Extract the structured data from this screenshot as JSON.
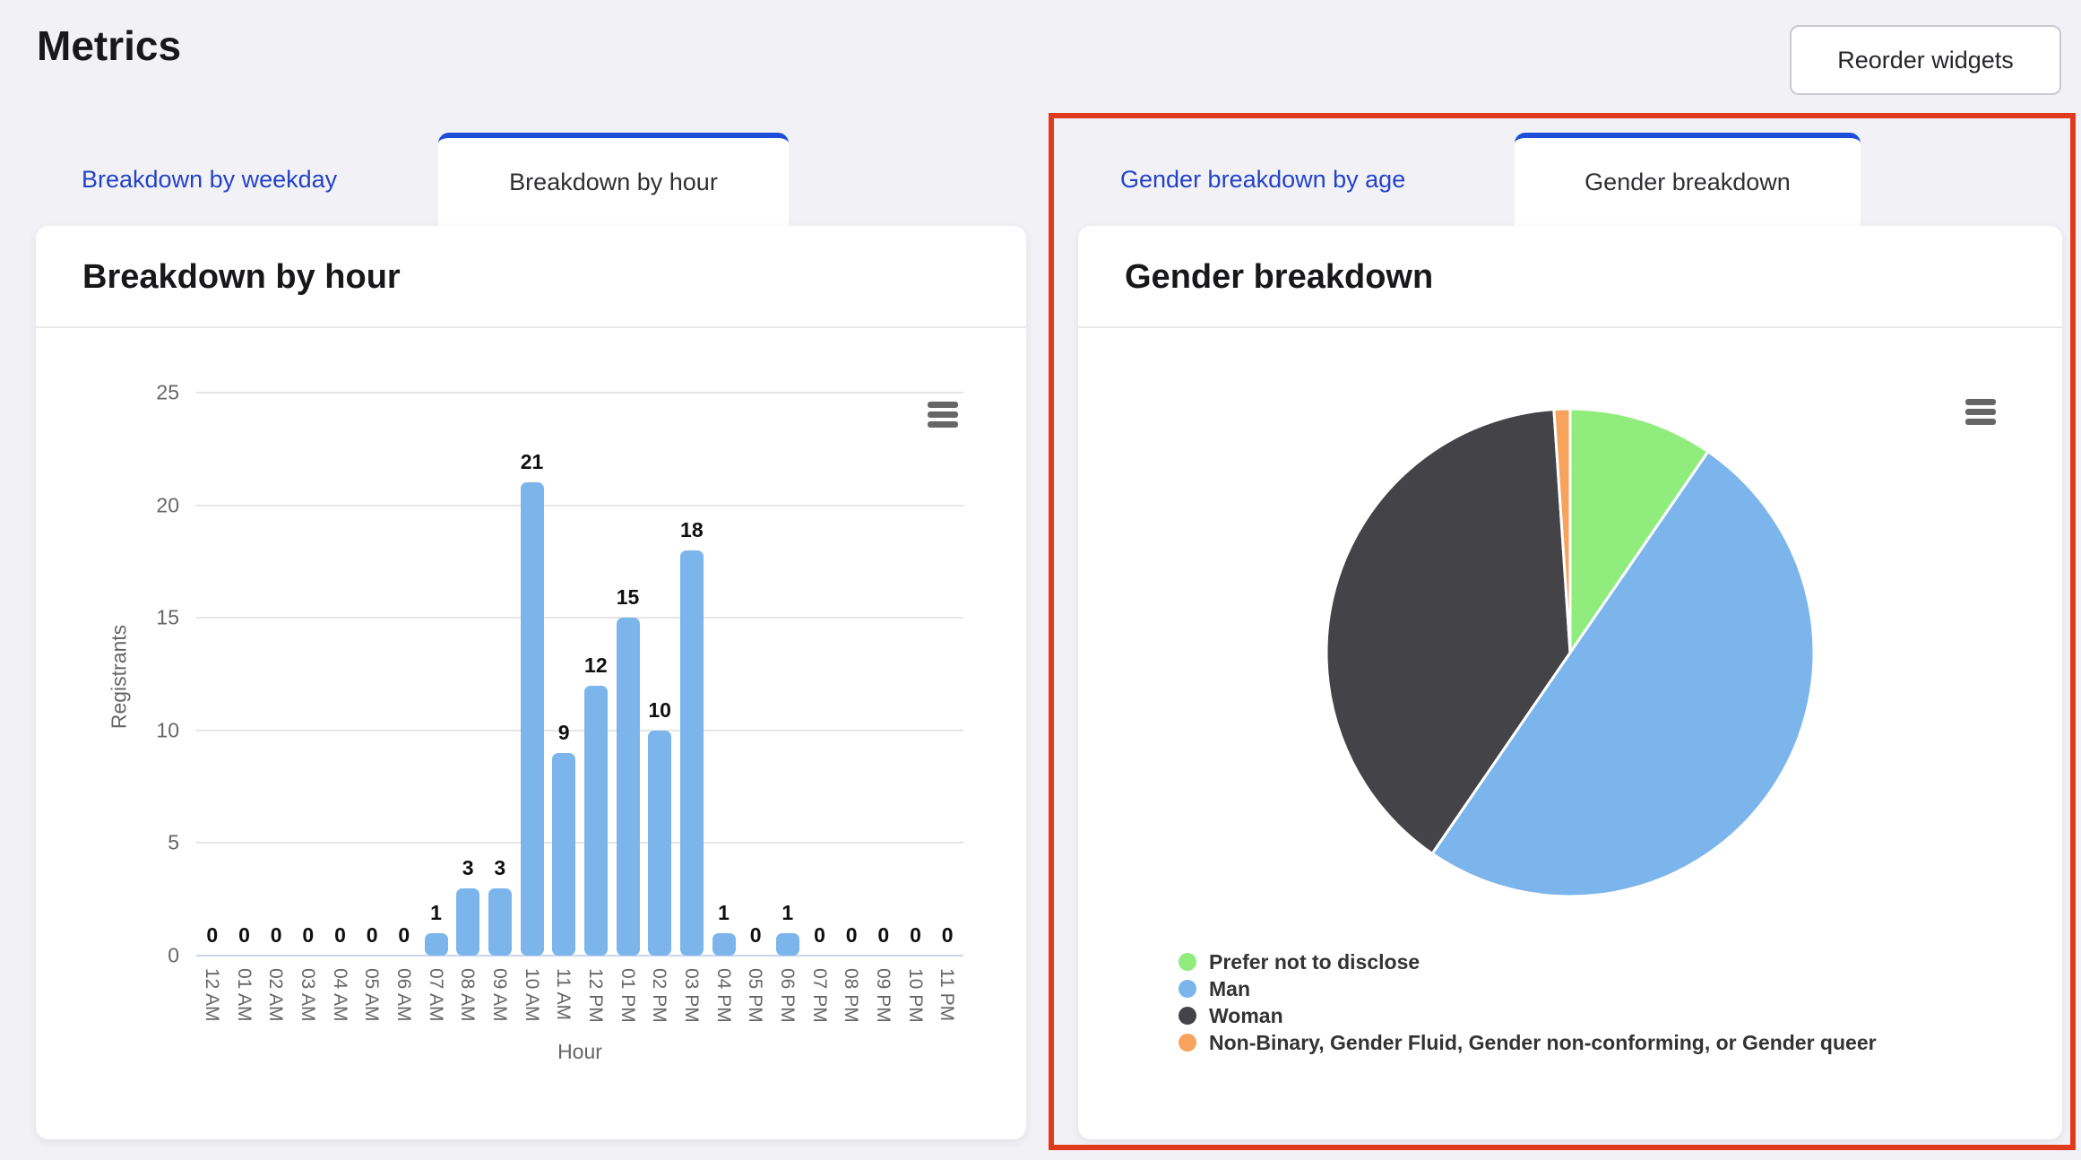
{
  "page": {
    "title": "Metrics",
    "reorder_button": "Reorder widgets",
    "background": "#f1f1f6"
  },
  "left_widget": {
    "tabs": [
      {
        "label": "Breakdown by weekday",
        "active": false
      },
      {
        "label": "Breakdown by hour",
        "active": true
      }
    ],
    "card_title": "Breakdown by hour",
    "menu_icon": "hamburger-icon"
  },
  "right_widget": {
    "tabs": [
      {
        "label": "Gender breakdown by age",
        "active": false
      },
      {
        "label": "Gender breakdown",
        "active": true
      }
    ],
    "card_title": "Gender breakdown",
    "menu_icon": "hamburger-icon",
    "highlighted": true,
    "highlight_color": "#e23a1d"
  },
  "colors": {
    "link_blue": "#2342c8",
    "active_tab_border": "#1d4ed8",
    "bar_fill": "#7cb5ec",
    "axis_text": "#666666",
    "grid_line": "#e6e6e6",
    "axis_line": "#ccd6eb",
    "highlight_red": "#e23a1d"
  },
  "chart_data": [
    {
      "type": "bar",
      "title": "Breakdown by hour",
      "xlabel": "Hour",
      "ylabel": "Registrants",
      "categories": [
        "12 AM",
        "01 AM",
        "02 AM",
        "03 AM",
        "04 AM",
        "05 AM",
        "06 AM",
        "07 AM",
        "08 AM",
        "09 AM",
        "10 AM",
        "11 AM",
        "12 PM",
        "01 PM",
        "02 PM",
        "03 PM",
        "04 PM",
        "05 PM",
        "06 PM",
        "07 PM",
        "08 PM",
        "09 PM",
        "10 PM",
        "11 PM"
      ],
      "values": [
        0,
        0,
        0,
        0,
        0,
        0,
        0,
        1,
        3,
        3,
        21,
        9,
        12,
        15,
        10,
        18,
        1,
        0,
        1,
        0,
        0,
        0,
        0,
        0
      ],
      "ylim": [
        0,
        25
      ],
      "yticks": [
        0,
        5,
        10,
        15,
        20,
        25
      ],
      "bar_color": "#7cb5ec",
      "grid": true,
      "data_labels": true,
      "x_label_rotation": 90
    },
    {
      "type": "pie",
      "title": "Gender breakdown",
      "total": 94,
      "start_angle": 0,
      "legend_position": "bottom-left",
      "slices": [
        {
          "label": "Prefer not to disclose",
          "value": 9,
          "color": "#90ed7d"
        },
        {
          "label": "Man",
          "value": 47,
          "color": "#7cb5ec"
        },
        {
          "label": "Woman",
          "value": 37,
          "color": "#434348"
        },
        {
          "label": "Non-Binary, Gender Fluid, Gender non-conforming, or Gender queer",
          "value": 1,
          "color": "#f7a35c"
        }
      ]
    }
  ]
}
